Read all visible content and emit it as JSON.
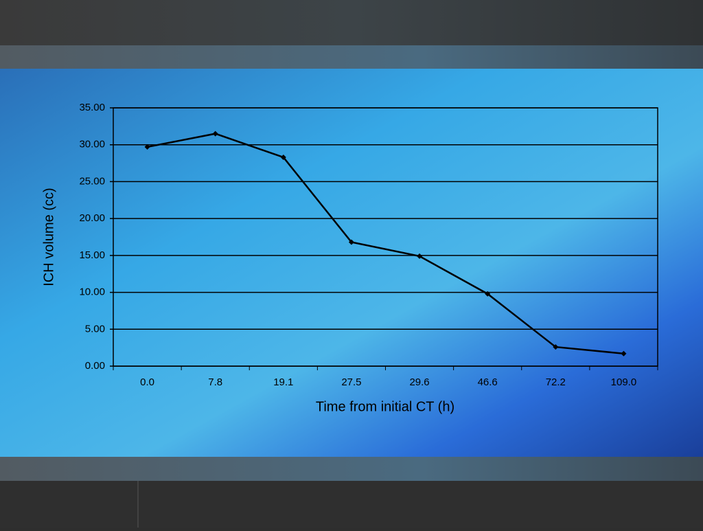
{
  "chart_data": {
    "type": "line",
    "x_label": "Time from initial CT (h)",
    "y_label": "ICH volume (cc)",
    "categories": [
      "0.0",
      "7.8",
      "19.1",
      "27.5",
      "29.6",
      "46.6",
      "72.2",
      "109.0"
    ],
    "values": [
      29.7,
      31.5,
      28.3,
      16.8,
      14.9,
      9.8,
      2.6,
      1.7
    ],
    "color": "#000000",
    "ylim": [
      0,
      35
    ],
    "yticks": [
      {
        "value": 0,
        "label": "0.00"
      },
      {
        "value": 5,
        "label": "5.00"
      },
      {
        "value": 10,
        "label": "10.00"
      },
      {
        "value": 15,
        "label": "15.00"
      },
      {
        "value": 20,
        "label": "20.00"
      },
      {
        "value": 25,
        "label": "25.00"
      },
      {
        "value": 30,
        "label": "30.00"
      },
      {
        "value": 35,
        "label": "35.00"
      }
    ],
    "grid": true
  }
}
